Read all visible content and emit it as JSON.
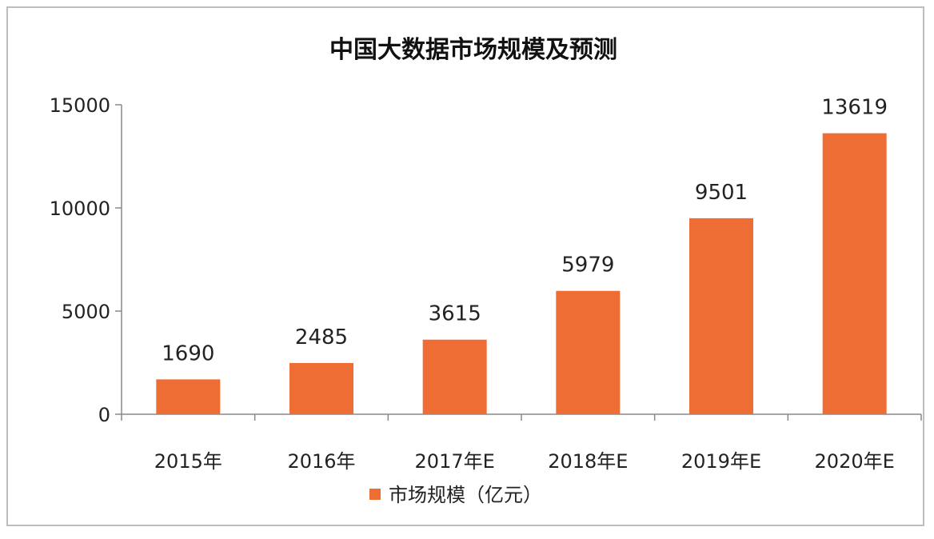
{
  "chart_data": {
    "type": "bar",
    "title": "中国大数据市场规模及预测",
    "categories": [
      "2015年",
      "2016年",
      "2017年E",
      "2018年E",
      "2019年E",
      "2020年E"
    ],
    "series": [
      {
        "name": "市场规模（亿元）",
        "values": [
          1690,
          2485,
          3615,
          5979,
          9501,
          13619
        ]
      }
    ],
    "data_labels": [
      "1690",
      "2485",
      "3615",
      "5979",
      "9501",
      "13619"
    ],
    "ylim": [
      0,
      15000
    ],
    "yticks": [
      "0",
      "5000",
      "10000",
      "15000"
    ],
    "ytick_values": [
      0,
      5000,
      10000,
      15000
    ],
    "grid": false,
    "legend_position": "bottom",
    "bar_color": "#ED6D35"
  }
}
